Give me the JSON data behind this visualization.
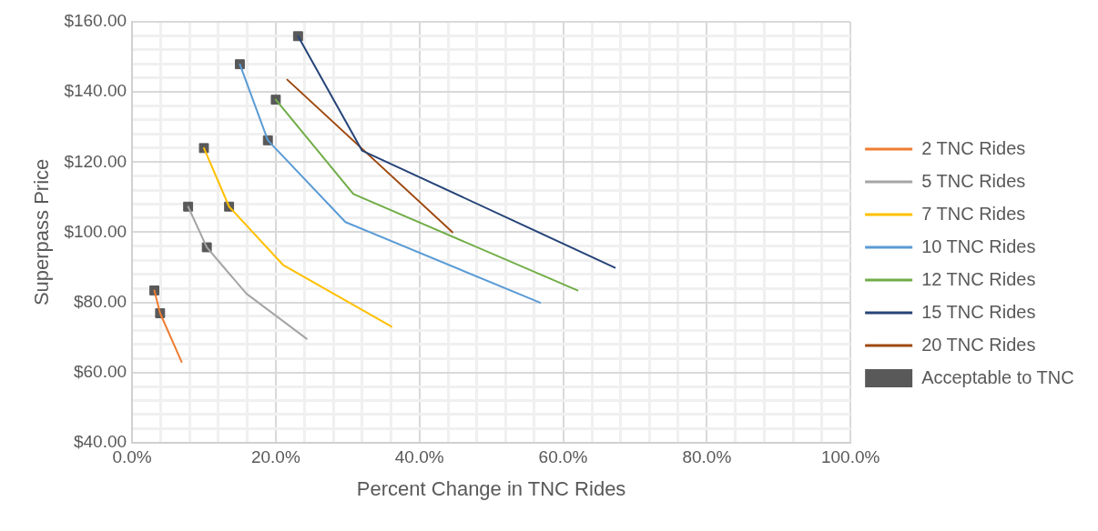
{
  "chart_data": {
    "type": "line",
    "xlabel": "Percent Change in TNC Rides",
    "ylabel": "Superpass Price",
    "xlim": [
      0,
      100
    ],
    "ylim": [
      40,
      160
    ],
    "xticks": [
      {
        "value": 0,
        "label": "0.0%"
      },
      {
        "value": 4,
        "label": null
      },
      {
        "value": 8,
        "label": null
      },
      {
        "value": 12,
        "label": null
      },
      {
        "value": 16,
        "label": null
      },
      {
        "value": 20,
        "label": "20.0%"
      },
      {
        "value": 24,
        "label": null
      },
      {
        "value": 28,
        "label": null
      },
      {
        "value": 32,
        "label": null
      },
      {
        "value": 36,
        "label": null
      },
      {
        "value": 40,
        "label": "40.0%"
      },
      {
        "value": 44,
        "label": null
      },
      {
        "value": 48,
        "label": null
      },
      {
        "value": 52,
        "label": null
      },
      {
        "value": 56,
        "label": null
      },
      {
        "value": 60,
        "label": "60.0%"
      },
      {
        "value": 64,
        "label": null
      },
      {
        "value": 68,
        "label": null
      },
      {
        "value": 72,
        "label": null
      },
      {
        "value": 76,
        "label": null
      },
      {
        "value": 80,
        "label": "80.0%"
      },
      {
        "value": 84,
        "label": null
      },
      {
        "value": 88,
        "label": null
      },
      {
        "value": 92,
        "label": null
      },
      {
        "value": 96,
        "label": null
      },
      {
        "value": 100,
        "label": "100.0%"
      }
    ],
    "yticks": [
      {
        "value": 40,
        "label": "$40.00"
      },
      {
        "value": 44,
        "label": null
      },
      {
        "value": 48,
        "label": null
      },
      {
        "value": 52,
        "label": null
      },
      {
        "value": 56,
        "label": null
      },
      {
        "value": 60,
        "label": "$60.00"
      },
      {
        "value": 64,
        "label": null
      },
      {
        "value": 68,
        "label": null
      },
      {
        "value": 72,
        "label": null
      },
      {
        "value": 76,
        "label": null
      },
      {
        "value": 80,
        "label": "$80.00"
      },
      {
        "value": 84,
        "label": null
      },
      {
        "value": 88,
        "label": null
      },
      {
        "value": 92,
        "label": null
      },
      {
        "value": 96,
        "label": null
      },
      {
        "value": 100,
        "label": "$100.00"
      },
      {
        "value": 104,
        "label": null
      },
      {
        "value": 108,
        "label": null
      },
      {
        "value": 112,
        "label": null
      },
      {
        "value": 116,
        "label": null
      },
      {
        "value": 120,
        "label": "$120.00"
      },
      {
        "value": 124,
        "label": null
      },
      {
        "value": 128,
        "label": null
      },
      {
        "value": 132,
        "label": null
      },
      {
        "value": 136,
        "label": null
      },
      {
        "value": 140,
        "label": "$140.00"
      },
      {
        "value": 144,
        "label": null
      },
      {
        "value": 148,
        "label": null
      },
      {
        "value": 152,
        "label": null
      },
      {
        "value": 156,
        "label": null
      },
      {
        "value": 160,
        "label": "$160.00"
      }
    ],
    "grid": true,
    "legend": "right",
    "marker": "none",
    "line_style": "solid",
    "series": [
      {
        "name": "2 TNC Rides",
        "color": "#ed7d31",
        "x": [
          3.1,
          3.9,
          6.9
        ],
        "values": [
          83.4,
          76.9,
          63.0
        ]
      },
      {
        "name": "5 TNC Rides",
        "color": "#a5a5a5",
        "x": [
          7.8,
          10.4,
          15.9,
          24.3
        ],
        "values": [
          107.3,
          95.7,
          82.5,
          69.6
        ]
      },
      {
        "name": "7 TNC Rides",
        "color": "#ffc000",
        "x": [
          10.0,
          13.5,
          21.0,
          36.1
        ],
        "values": [
          124.0,
          107.3,
          90.7,
          73.1
        ]
      },
      {
        "name": "10 TNC Rides",
        "color": "#5b9bd5",
        "x": [
          15.0,
          18.9,
          29.7,
          56.8
        ],
        "values": [
          147.9,
          126.2,
          102.9,
          79.9
        ]
      },
      {
        "name": "12 TNC Rides",
        "color": "#70ad47",
        "x": [
          20.0,
          30.8,
          62.0
        ],
        "values": [
          137.8,
          110.9,
          83.4
        ]
      },
      {
        "name": "15 TNC Rides",
        "color": "#264478",
        "x": [
          23.1,
          32.0,
          67.2
        ],
        "values": [
          155.9,
          123.3,
          89.9
        ]
      },
      {
        "name": "20 TNC Rides",
        "color": "#9e480e",
        "x": [
          21.6,
          44.6
        ],
        "values": [
          143.5,
          100.0
        ]
      },
      {
        "name": "Acceptable to TNC",
        "type": "scatter",
        "marker": "square",
        "color": "#595959",
        "x": [
          3.1,
          3.9,
          7.8,
          10.4,
          10.0,
          13.5,
          15.0,
          18.9,
          20.0,
          23.1
        ],
        "values": [
          83.4,
          76.9,
          107.3,
          95.7,
          124.0,
          107.3,
          147.9,
          126.2,
          137.8,
          155.9
        ]
      }
    ]
  }
}
